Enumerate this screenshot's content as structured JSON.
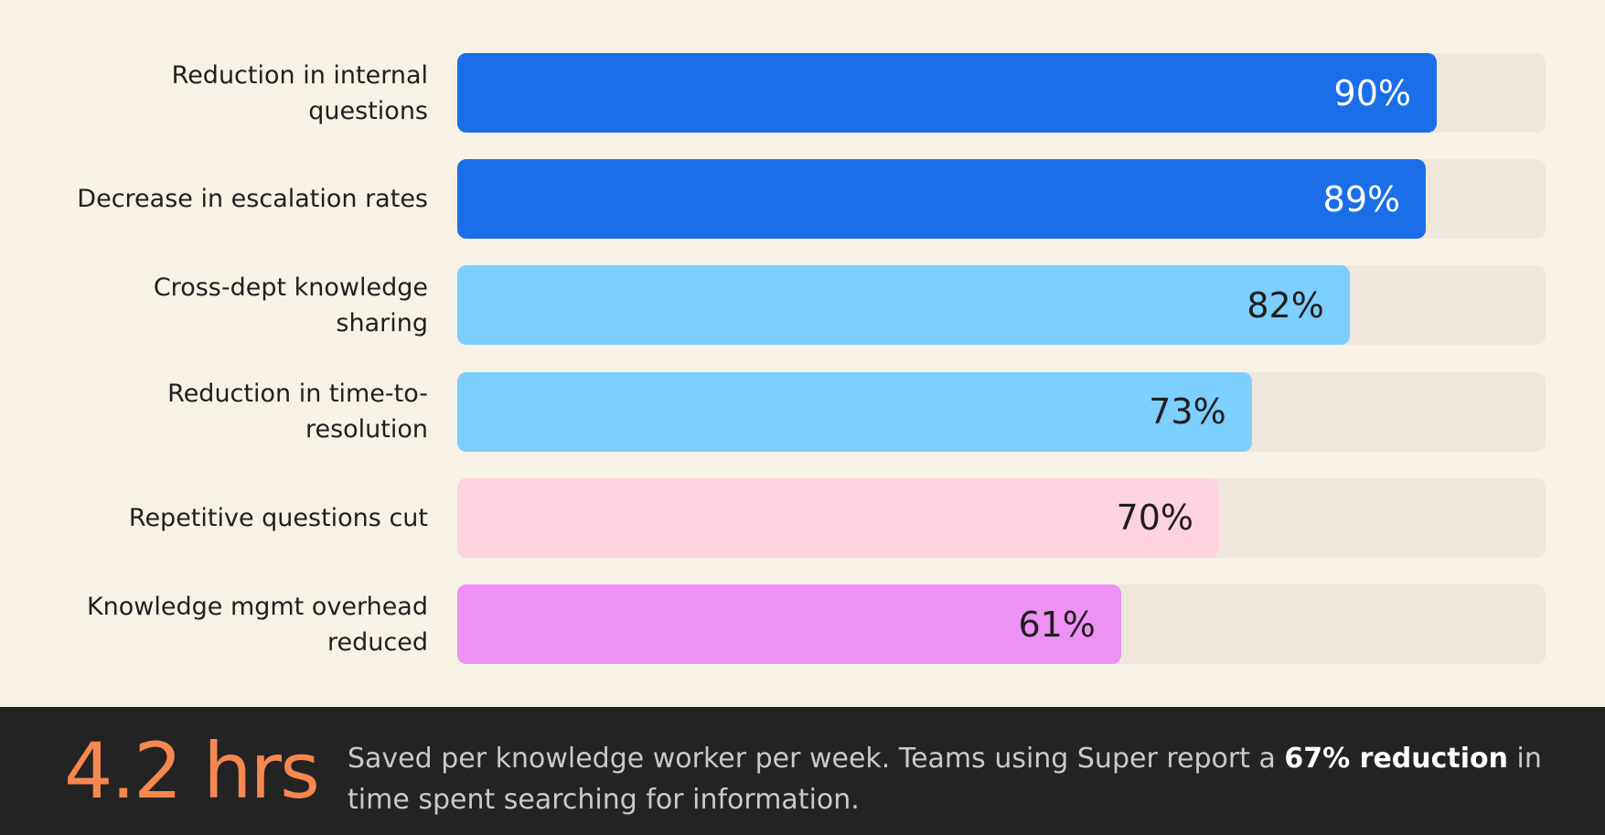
{
  "chart_data": {
    "type": "hbar",
    "categories": [
      "Reduction in internal questions",
      "Decrease in escalation rates",
      "Cross-dept knowledge sharing",
      "Reduction in time-to-resolution",
      "Repetitive questions cut",
      "Knowledge mgmt overhead reduced"
    ],
    "values": [
      90,
      89,
      82,
      73,
      70,
      61
    ],
    "value_labels": [
      "90%",
      "89%",
      "82%",
      "73%",
      "70%",
      "61%"
    ],
    "colors": [
      "#1a6fe8",
      "#1a6fe8",
      "#7dcfff",
      "#7dcfff",
      "#fdd3e0",
      "#ee91f4"
    ],
    "xlim": [
      0,
      100
    ]
  },
  "footer": {
    "stat": "4.2 hrs",
    "text": [
      "Saved per knowledge worker per week. Teams using Super report a ",
      "67% reduction",
      " in time spent searching for information."
    ]
  }
}
